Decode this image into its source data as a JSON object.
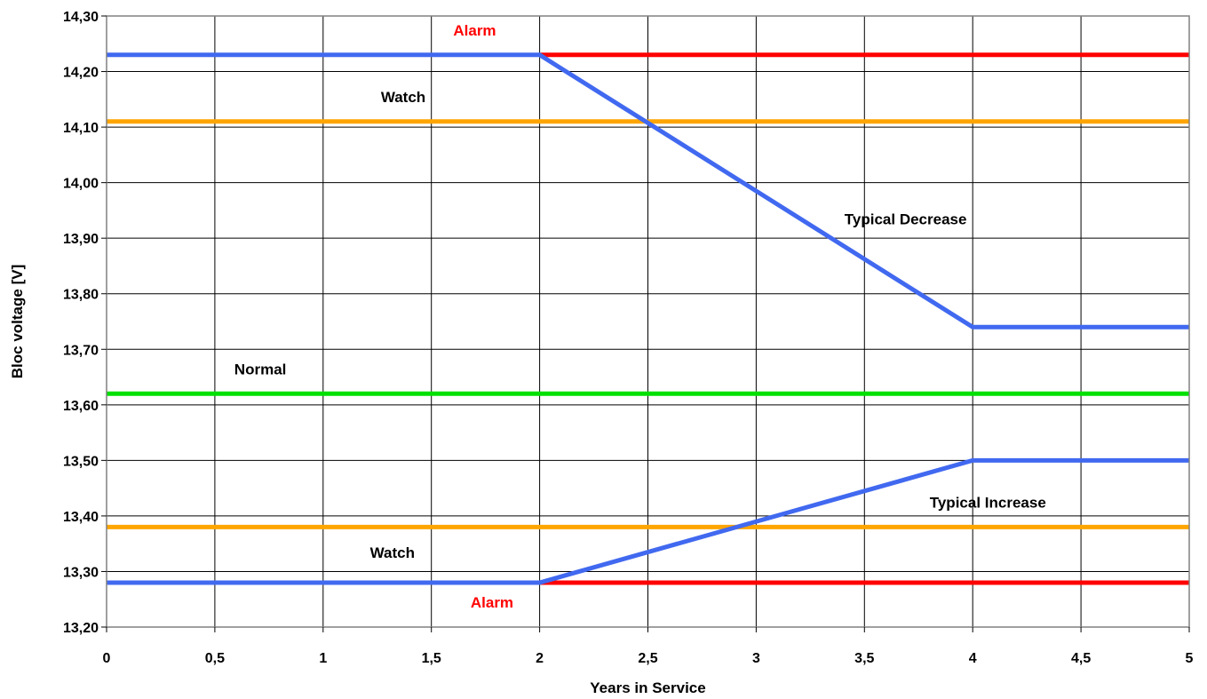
{
  "chart_data": {
    "type": "line",
    "title": "",
    "xlabel": "Years in Service",
    "ylabel": "Bloc voltage [V]",
    "xlim": [
      0,
      5
    ],
    "ylim": [
      13.2,
      14.3
    ],
    "x_ticks": [
      "0",
      "0,5",
      "1",
      "1,5",
      "2",
      "2,5",
      "3",
      "3,5",
      "4",
      "4,5",
      "5"
    ],
    "y_ticks": [
      "13,20",
      "13,30",
      "13,40",
      "13,50",
      "13,60",
      "13,70",
      "13,80",
      "13,90",
      "14,00",
      "14,10",
      "14,20",
      "14,30"
    ],
    "grid": true,
    "legend": "none",
    "series": [
      {
        "color": "#ff0000",
        "x": [
          2,
          5
        ],
        "y": [
          14.23,
          14.23
        ]
      },
      {
        "color": "#ffa500",
        "x": [
          0,
          5
        ],
        "y": [
          14.11,
          14.11
        ]
      },
      {
        "color": "#00e000",
        "x": [
          0,
          5
        ],
        "y": [
          13.62,
          13.62
        ]
      },
      {
        "color": "#ffa500",
        "x": [
          0,
          5
        ],
        "y": [
          13.38,
          13.38
        ]
      },
      {
        "color": "#ff0000",
        "x": [
          2,
          5
        ],
        "y": [
          13.28,
          13.28
        ]
      },
      {
        "color": "#4169f0",
        "x": [
          0,
          2,
          4,
          5
        ],
        "y": [
          14.23,
          14.23,
          13.74,
          13.74
        ]
      },
      {
        "color": "#4169f0",
        "x": [
          0,
          2,
          4,
          5
        ],
        "y": [
          13.28,
          13.28,
          13.5,
          13.5
        ]
      }
    ],
    "annotations": [
      {
        "text": "Alarm",
        "x": 1.7,
        "y": 14.265,
        "color": "#ff0000"
      },
      {
        "text": "Watch",
        "x": 1.37,
        "y": 14.145,
        "color": "#000000"
      },
      {
        "text": "Typical Decrease",
        "x": 3.69,
        "y": 13.925,
        "color": "#000000"
      },
      {
        "text": "Normal",
        "x": 0.71,
        "y": 13.655,
        "color": "#000000"
      },
      {
        "text": "Typical Increase",
        "x": 4.07,
        "y": 13.415,
        "color": "#000000"
      },
      {
        "text": "Watch",
        "x": 1.32,
        "y": 13.325,
        "color": "#000000"
      },
      {
        "text": "Alarm",
        "x": 1.78,
        "y": 13.235,
        "color": "#ff0000"
      }
    ]
  }
}
